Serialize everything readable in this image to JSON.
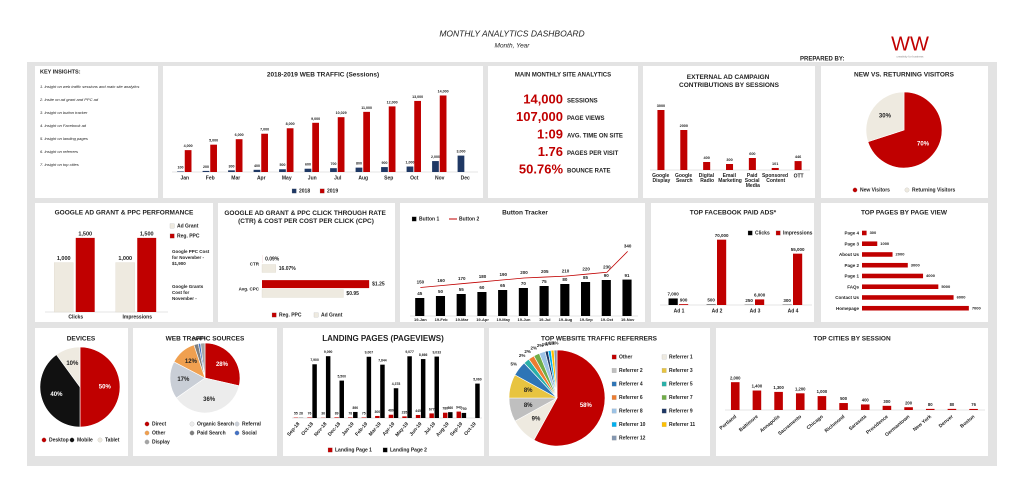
{
  "header": {
    "title": "MONTHLY ANALYTICS DASHBOARD",
    "subtitle": "Month, Year",
    "prepared_by": "PREPARED BY:",
    "logo": "WW",
    "logo_tagline": "creativity for business"
  },
  "insights": {
    "title": "KEY INSIGHTS:",
    "items": [
      "1. Insight on web traffic sessions and main site analytics",
      "2. Insite on ad grant and PPC ad",
      "3. Insight on button tracker",
      "4. Insight on Facebook ad",
      "5. Insight on landing pages",
      "6. Insight on referrers",
      "7. Insight on top cities"
    ]
  },
  "kpis": {
    "title": "MAIN MONTHLY SITE ANALYTICS",
    "items": [
      {
        "value": "14,000",
        "label": "SESSIONS"
      },
      {
        "value": "107,000",
        "label": "PAGE VIEWS"
      },
      {
        "value": "1:09",
        "label": "AVG. TIME ON SITE"
      },
      {
        "value": "1.76",
        "label": "PAGES PER VISIT"
      },
      {
        "value": "50.76%",
        "label": "BOUNCE RATE"
      }
    ]
  },
  "chart_data": [
    {
      "type": "bar",
      "title": "2018-2019 WEB TRAFFIC (Sessions)",
      "categories": [
        "Jan",
        "Feb",
        "Mar",
        "Apr",
        "May",
        "Jun",
        "Jul",
        "Aug",
        "Sep",
        "Oct",
        "Nov",
        "Dec"
      ],
      "series": [
        {
          "name": "2018",
          "color": "#1f3864",
          "values": [
            100,
            200,
            300,
            400,
            500,
            600,
            700,
            800,
            900,
            1000,
            2000,
            3000
          ],
          "value_labels": [
            "100",
            "200",
            "300",
            "400",
            "500",
            "600",
            "700",
            "800",
            "900",
            "1,000",
            "2,000",
            "3,000"
          ]
        },
        {
          "name": "2019",
          "color": "#c00000",
          "values": [
            4000,
            5000,
            6000,
            7000,
            8000,
            9000,
            10029,
            11000,
            12000,
            13000,
            14000,
            null
          ],
          "value_labels": [
            "4,000",
            "5,000",
            "6,000",
            "7,000",
            "8,000",
            "9,000",
            "10,029",
            "11,000",
            "12,000",
            "13,000",
            "14,000",
            null
          ]
        }
      ],
      "ylim": [
        0,
        15000
      ]
    },
    {
      "type": "bar",
      "title": "EXTERNAL AD CAMPAIGN CONTRIBUTIONS BY SESSIONS",
      "categories": [
        "Google Display",
        "Google Search",
        "Digital Radio",
        "Email Marketing",
        "Paid Social Media",
        "Sponsored Content",
        "OTT"
      ],
      "values": [
        3000,
        2000,
        400,
        300,
        600,
        101,
        446
      ],
      "color": "#c00000",
      "ylim": [
        0,
        3300
      ]
    },
    {
      "type": "pie",
      "title": "NEW VS. RETURNING VISITORS",
      "categories": [
        "New Visitors",
        "Returning Visitors"
      ],
      "values": [
        70,
        30
      ],
      "value_labels": [
        "70%",
        "30%"
      ],
      "colors": [
        "#c00000",
        "#eeeae0"
      ]
    },
    {
      "type": "bar",
      "title": "GOOGLE AD GRANT & PPC PERFORMANCE",
      "categories": [
        "Clicks",
        "Impressions"
      ],
      "series": [
        {
          "name": "Ad Grant",
          "color": "#eeeae0",
          "values": [
            1000,
            1000
          ],
          "value_labels": [
            "1,000",
            "1,000"
          ]
        },
        {
          "name": "Reg. PPC",
          "color": "#c00000",
          "values": [
            1500,
            1500
          ],
          "value_labels": [
            "1,500",
            "1,500"
          ]
        }
      ],
      "ylim": [
        0,
        1700
      ],
      "annotations": [
        "Google PPC Cost for November - $1,900",
        "Google Grants Cost for November -"
      ]
    },
    {
      "type": "hbar",
      "title": "GOOGLE AD GRANT & PPC CLICK THROUGH RATE (CTR) & COST PER COST PER CLICK (CPC)",
      "categories": [
        "CTR",
        "Avg. CPC"
      ],
      "series": [
        {
          "name": "Reg. PPC",
          "color": "#c00000",
          "values": [
            0.0009,
            1.25
          ],
          "value_labels": [
            "0.09%",
            "$1.25"
          ]
        },
        {
          "name": "Ad Grant",
          "color": "#eeeae0",
          "values": [
            0.1607,
            0.95
          ],
          "value_labels": [
            "16.07%",
            "$0.95"
          ]
        }
      ],
      "xlim": [
        0,
        1.4
      ]
    },
    {
      "type": "combo",
      "title": "Button Tracker",
      "categories": [
        "19-Jan",
        "19-Feb",
        "19-Mar",
        "19-Apr",
        "19-May",
        "19-Jun",
        "19-Jul",
        "19-Aug",
        "19-Sep",
        "19-Oct",
        "19-Nov"
      ],
      "series": [
        {
          "name": "Button 1",
          "type": "bar",
          "color": "#000000",
          "values": [
            45,
            50,
            55,
            60,
            65,
            70,
            75,
            80,
            85,
            90,
            91
          ]
        },
        {
          "name": "Button 2",
          "type": "line",
          "axis": "y2",
          "color": "#c00000",
          "values": [
            150,
            160,
            170,
            180,
            190,
            200,
            205,
            210,
            220,
            230,
            340
          ]
        }
      ],
      "ylim": [
        0,
        190
      ],
      "y2lim": [
        0,
        400
      ]
    },
    {
      "type": "bar",
      "title": "TOP FACEBOOK PAID ADS*",
      "categories": [
        "Ad 1",
        "Ad 2",
        "Ad 3",
        "Ad 4"
      ],
      "series": [
        {
          "name": "Clicks",
          "color": "#000000",
          "values": [
            7000,
            500,
            250,
            300
          ],
          "value_labels": [
            "7,000",
            "500",
            "250",
            "300"
          ]
        },
        {
          "name": "Impressions",
          "color": "#c00000",
          "values": [
            900,
            70000,
            6000,
            55000
          ],
          "value_labels": [
            "900",
            "70,000",
            "6,000",
            "55,000"
          ]
        }
      ],
      "ylim": [
        0,
        75000
      ]
    },
    {
      "type": "hbar",
      "title": "TOP PAGES BY PAGE VIEW",
      "categories": [
        "Page 4",
        "Page 3",
        "About Us",
        "Page 2",
        "Page 1",
        "FAQs",
        "Contact Us",
        "Homepage"
      ],
      "values": [
        300,
        1000,
        2000,
        3000,
        4000,
        5000,
        6000,
        7000
      ],
      "color": "#c00000",
      "xlim": [
        0,
        7600
      ]
    },
    {
      "type": "pie",
      "title": "DEVICES",
      "categories": [
        "Desktop",
        "Mobile",
        "Tablet"
      ],
      "values": [
        50,
        40,
        10
      ],
      "value_labels": [
        "50%",
        "40%",
        "10%"
      ],
      "colors": [
        "#c00000",
        "#111111",
        "#eeeae0"
      ]
    },
    {
      "type": "pie",
      "title": "WEB TRAFFIC SOURCES",
      "categories": [
        "Direct",
        "Organic Search",
        "Referral",
        "Other",
        "Paid Search",
        "Social",
        "Display"
      ],
      "values": [
        28,
        36,
        17,
        12,
        2,
        1,
        2
      ],
      "value_labels": [
        "28%",
        "36%",
        "17%",
        "12%",
        "2%",
        "1%",
        "2%"
      ],
      "colors": [
        "#c00000",
        "#ececec",
        "#c9ced6",
        "#f0a050",
        "#7f7f7f",
        "#4472c4",
        "#a5a5a5"
      ]
    },
    {
      "type": "bar",
      "title": "LANDING PAGES (PAGEVIEWS)",
      "categories": [
        "Sep-18",
        "Oct-18",
        "Nov-18",
        "Dec-18",
        "Jan-19",
        "Feb-19",
        "Mar-19",
        "Apr-19",
        "May-19",
        "Jun-19",
        "Jul-19",
        "Aug-19",
        "Sep-19",
        "Oct-19"
      ],
      "series": [
        {
          "name": "Landing Page 1",
          "color": "#c00000",
          "values": [
            55,
            76,
            36,
            89,
            78,
            75,
            300,
            480,
            235,
            445,
            677,
            780,
            943,
            null
          ]
        },
        {
          "name": "Landing Page 2",
          "color": "#000000",
          "values": [
            28,
            7900,
            9090,
            5500,
            890,
            9007,
            7844,
            4378,
            9077,
            8666,
            9033,
            860,
            750,
            5060
          ],
          "value_labels": [
            "28",
            "7,900",
            "9,090",
            "5,500",
            "890",
            "9,007",
            "7,844",
            "4,378",
            "9,077",
            "8,666",
            "9,033",
            "860",
            "750",
            "5,060"
          ]
        }
      ],
      "ylim": [
        0,
        10000
      ]
    },
    {
      "type": "pie",
      "title": "TOP WEBSITE TRAFFIC REFERRERS",
      "categories": [
        "Other",
        "Referrer 1",
        "Referrer 2",
        "Referrer 3",
        "Referrer 4",
        "Referrer 5",
        "Referrer 6",
        "Referrer 7",
        "Referrer 8",
        "Referrer 9",
        "Referrer 10",
        "Referrer 11",
        "Referrer 12"
      ],
      "values": [
        58,
        9,
        8,
        8,
        5,
        2,
        2,
        2,
        2,
        1,
        1,
        1,
        1
      ],
      "value_labels": [
        "58%",
        "9%",
        "8%",
        "8%",
        "5%",
        "2%",
        "2%",
        "2%",
        "2%",
        "1%",
        "1%",
        "1%",
        "1%"
      ],
      "colors": [
        "#c00000",
        "#eeeae0",
        "#bfbfbf",
        "#e8c440",
        "#2e75b6",
        "#2ab0a8",
        "#ed7d31",
        "#70ad47",
        "#9dc3e6",
        "#1f3864",
        "#00b0f0",
        "#ffc000",
        "#8497b0"
      ]
    },
    {
      "type": "bar",
      "title": "TOP CITIES BY SESSION",
      "categories": [
        "Portland",
        "Baltimore",
        "Annapolis",
        "Sacramento",
        "Chicago",
        "Richmond",
        "Sarasota",
        "Providence",
        "Germantown",
        "New York",
        "Denver",
        "Boston"
      ],
      "values": [
        2000,
        1400,
        1300,
        1200,
        1000,
        500,
        400,
        300,
        200,
        80,
        80,
        76
      ],
      "value_labels": [
        "2,000",
        "1,400",
        "1,300",
        "1,200",
        "1,000",
        "500",
        "400",
        "300",
        "200",
        "80",
        "80",
        "76"
      ],
      "color": "#c00000",
      "ylim": [
        0,
        2300
      ]
    }
  ]
}
